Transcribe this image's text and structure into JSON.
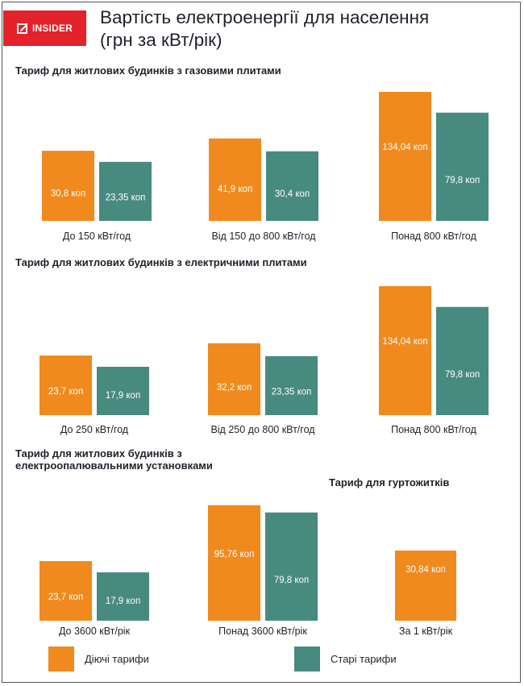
{
  "brand": {
    "logo_text": "INSIDER",
    "accent": "#e3222b"
  },
  "title_line1": "Вартість електроенергії для населення",
  "title_line2": "(грн за кВт/рік)",
  "colors": {
    "current": "#f08a1e",
    "old": "#478a80"
  },
  "legend": {
    "current": "Діючі тарифи",
    "old": "Старі тарифи"
  },
  "chart_data": [
    {
      "type": "bar",
      "title": "Тариф для житлових будинків з газовими плитами",
      "categories": [
        "До 150 кВт/год",
        "Від 150 до 800 кВт/год",
        "Понад 800 кВт/год"
      ],
      "series": [
        {
          "name": "Діючі тарифи",
          "values": [
            30.8,
            41.9,
            134.04
          ],
          "labels": [
            "30,8 коп",
            "41,9 коп",
            "134,04 коп"
          ]
        },
        {
          "name": "Старі тарифи",
          "values": [
            23.35,
            30.4,
            79.8
          ],
          "labels": [
            "23,35 коп",
            "30,4 коп",
            "79,8 коп"
          ]
        }
      ]
    },
    {
      "type": "bar",
      "title": "Тариф для житлових будинків з електричними плитами",
      "categories": [
        "До 250 кВт/год",
        "Від 250 до 800 кВт/год",
        "Понад 800 кВт/год"
      ],
      "series": [
        {
          "name": "Діючі тарифи",
          "values": [
            23.7,
            32.2,
            134.04
          ],
          "labels": [
            "23,7 коп",
            "32,2 коп",
            "134,04 коп"
          ]
        },
        {
          "name": "Старі тарифи",
          "values": [
            17.9,
            23.35,
            79.8
          ],
          "labels": [
            "17,9 коп",
            "23,35 коп",
            "79,8 коп"
          ]
        }
      ]
    },
    {
      "type": "bar",
      "title_line1": "Тариф для житлових будинків з",
      "title_line2": "електроопалювальними установками",
      "categories": [
        "До 3600 кВт/рік",
        "Понад 3600 кВт/рік"
      ],
      "series": [
        {
          "name": "Діючі тарифи",
          "values": [
            23.7,
            95.76
          ],
          "labels": [
            "23,7 коп",
            "95,76 коп"
          ]
        },
        {
          "name": "Старі тарифи",
          "values": [
            17.9,
            79.8
          ],
          "labels": [
            "17,9 коп",
            "79,8 коп"
          ]
        }
      ]
    },
    {
      "type": "bar",
      "title": "Тариф для гуртожитків",
      "categories": [
        "За 1 кВт/рік"
      ],
      "series": [
        {
          "name": "Діючі тарифи",
          "values": [
            30.84
          ],
          "labels": [
            "30,84 коп"
          ]
        }
      ]
    }
  ]
}
